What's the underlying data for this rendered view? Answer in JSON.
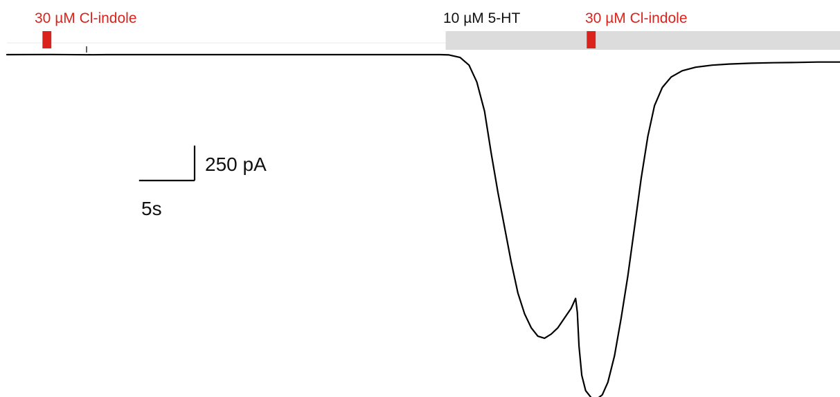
{
  "chart_data": {
    "type": "line",
    "title": "",
    "xlabel": "",
    "ylabel": "",
    "x_unit": "s",
    "y_unit": "pA",
    "xlim": [
      0,
      75
    ],
    "ylim": [
      -2400,
      50
    ],
    "series": [
      {
        "points": [
          [
            0,
            -15
          ],
          [
            4,
            -14
          ],
          [
            7.7,
            -16
          ],
          [
            9,
            -15
          ],
          [
            15,
            -15
          ],
          [
            25,
            -15
          ],
          [
            35,
            -15
          ],
          [
            39,
            -15
          ],
          [
            39.8,
            -17
          ],
          [
            40.8,
            -35
          ],
          [
            41.6,
            -90
          ],
          [
            42.3,
            -210
          ],
          [
            43,
            -420
          ],
          [
            43.6,
            -720
          ],
          [
            44.2,
            -1000
          ],
          [
            44.8,
            -1250
          ],
          [
            45.4,
            -1500
          ],
          [
            46,
            -1720
          ],
          [
            46.6,
            -1870
          ],
          [
            47.2,
            -1970
          ],
          [
            47.8,
            -2030
          ],
          [
            48.4,
            -2045
          ],
          [
            49,
            -2015
          ],
          [
            49.6,
            -1970
          ],
          [
            50.2,
            -1900
          ],
          [
            50.8,
            -1830
          ],
          [
            51.2,
            -1760
          ],
          [
            51.35,
            -1860
          ],
          [
            51.5,
            -2100
          ],
          [
            51.75,
            -2310
          ],
          [
            52.1,
            -2420
          ],
          [
            52.6,
            -2470
          ],
          [
            53.1,
            -2480
          ],
          [
            53.6,
            -2450
          ],
          [
            54.1,
            -2360
          ],
          [
            54.7,
            -2170
          ],
          [
            55.3,
            -1900
          ],
          [
            55.9,
            -1600
          ],
          [
            56.5,
            -1250
          ],
          [
            57.1,
            -900
          ],
          [
            57.7,
            -600
          ],
          [
            58.3,
            -380
          ],
          [
            59,
            -250
          ],
          [
            59.8,
            -175
          ],
          [
            60.8,
            -130
          ],
          [
            62,
            -105
          ],
          [
            63.5,
            -90
          ],
          [
            65,
            -82
          ],
          [
            67,
            -76
          ],
          [
            69,
            -73
          ],
          [
            71,
            -71
          ],
          [
            73,
            -68
          ],
          [
            75,
            -68
          ]
        ]
      }
    ],
    "applications": [
      {
        "label": "30 µM Cl-indole",
        "color": "#d9231c",
        "start_s": 3.2,
        "end_s": 4.0,
        "type": "pulse"
      },
      {
        "label": "10 µM 5-HT",
        "color": "#dcdcdc",
        "start_s": 39.5,
        "end_s": 75,
        "type": "bar"
      },
      {
        "label": "30 µM Cl-indole",
        "color": "#d9231c",
        "start_s": 52.2,
        "end_s": 53.0,
        "type": "pulse"
      }
    ],
    "scale_bar": {
      "x_value": 5,
      "y_value": 250,
      "x_label": "5s",
      "y_label": "250 pA"
    },
    "grid": false,
    "legend": "none",
    "colors": {
      "trace": "#000000",
      "drug_label": "#d9231c",
      "agonist_bar": "#dcdcdc",
      "agonist_label": "#111111"
    }
  }
}
